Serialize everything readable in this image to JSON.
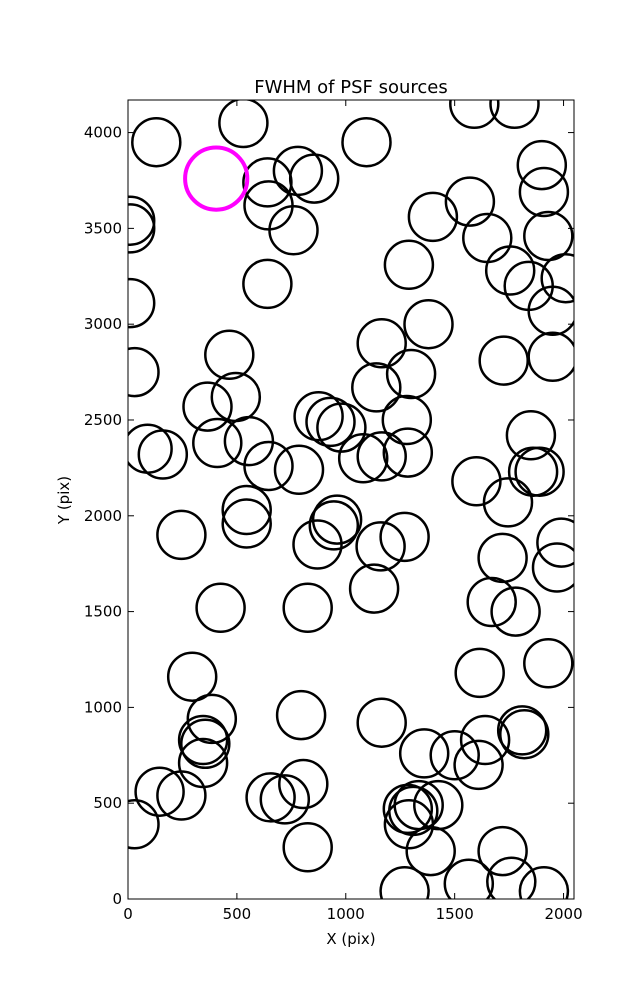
{
  "chart_data": {
    "type": "scatter",
    "title": "FWHM of PSF sources",
    "xlabel": "X (pix)",
    "ylabel": "Y (pix)",
    "xlim": [
      0,
      2048
    ],
    "ylim": [
      0,
      4170
    ],
    "xticks": [
      0,
      500,
      1000,
      1500,
      2000
    ],
    "yticks": [
      0,
      500,
      1000,
      1500,
      2000,
      2500,
      3000,
      3500,
      4000
    ],
    "grid": false,
    "marker": "open circle",
    "marker_radius_data_x": 110,
    "series": [
      {
        "color": "#000000",
        "points": [
          [
            130,
            3950
          ],
          [
            530,
            4050
          ],
          [
            1095,
            3950
          ],
          [
            1590,
            4150
          ],
          [
            1775,
            4150
          ],
          [
            10,
            3540
          ],
          [
            10,
            3500
          ],
          [
            640,
            3740
          ],
          [
            645,
            3620
          ],
          [
            780,
            3800
          ],
          [
            855,
            3760
          ],
          [
            760,
            3490
          ],
          [
            1400,
            3560
          ],
          [
            1570,
            3640
          ],
          [
            1650,
            3450
          ],
          [
            1900,
            3830
          ],
          [
            1910,
            3690
          ],
          [
            1930,
            3460
          ],
          [
            1290,
            3310
          ],
          [
            1755,
            3280
          ],
          [
            1840,
            3200
          ],
          [
            2010,
            3240
          ],
          [
            1950,
            3070
          ],
          [
            640,
            3210
          ],
          [
            10,
            3110
          ],
          [
            1380,
            3000
          ],
          [
            1165,
            2900
          ],
          [
            1300,
            2740
          ],
          [
            1725,
            2810
          ],
          [
            1950,
            2830
          ],
          [
            30,
            2750
          ],
          [
            465,
            2840
          ],
          [
            495,
            2620
          ],
          [
            365,
            2570
          ],
          [
            410,
            2380
          ],
          [
            555,
            2390
          ],
          [
            1140,
            2670
          ],
          [
            875,
            2520
          ],
          [
            930,
            2490
          ],
          [
            980,
            2460
          ],
          [
            1280,
            2500
          ],
          [
            90,
            2350
          ],
          [
            160,
            2320
          ],
          [
            645,
            2260
          ],
          [
            785,
            2240
          ],
          [
            1080,
            2300
          ],
          [
            1165,
            2310
          ],
          [
            1285,
            2330
          ],
          [
            1850,
            2420
          ],
          [
            1600,
            2180
          ],
          [
            1860,
            2230
          ],
          [
            1890,
            2230
          ],
          [
            1745,
            2070
          ],
          [
            545,
            2030
          ],
          [
            545,
            1960
          ],
          [
            960,
            1980
          ],
          [
            945,
            1950
          ],
          [
            870,
            1850
          ],
          [
            1160,
            1840
          ],
          [
            1270,
            1890
          ],
          [
            245,
            1900
          ],
          [
            1720,
            1780
          ],
          [
            1990,
            1860
          ],
          [
            1970,
            1730
          ],
          [
            1130,
            1620
          ],
          [
            425,
            1520
          ],
          [
            825,
            1520
          ],
          [
            1670,
            1550
          ],
          [
            1780,
            1500
          ],
          [
            295,
            1160
          ],
          [
            1615,
            1180
          ],
          [
            1930,
            1230
          ],
          [
            385,
            940
          ],
          [
            345,
            830
          ],
          [
            355,
            810
          ],
          [
            345,
            710
          ],
          [
            795,
            960
          ],
          [
            1165,
            920
          ],
          [
            1360,
            760
          ],
          [
            1500,
            750
          ],
          [
            1640,
            830
          ],
          [
            1610,
            700
          ],
          [
            1810,
            880
          ],
          [
            1820,
            860
          ],
          [
            145,
            560
          ],
          [
            245,
            540
          ],
          [
            30,
            390
          ],
          [
            655,
            530
          ],
          [
            720,
            520
          ],
          [
            805,
            600
          ],
          [
            825,
            270
          ],
          [
            1285,
            470
          ],
          [
            1310,
            460
          ],
          [
            1335,
            490
          ],
          [
            1425,
            490
          ],
          [
            1290,
            390
          ],
          [
            1390,
            250
          ],
          [
            1720,
            250
          ],
          [
            1270,
            40
          ],
          [
            1565,
            80
          ],
          [
            1760,
            90
          ],
          [
            1910,
            40
          ]
        ]
      },
      {
        "color": "#ff00ff",
        "highlight": true,
        "points": [
          [
            405,
            3760
          ]
        ]
      }
    ]
  }
}
